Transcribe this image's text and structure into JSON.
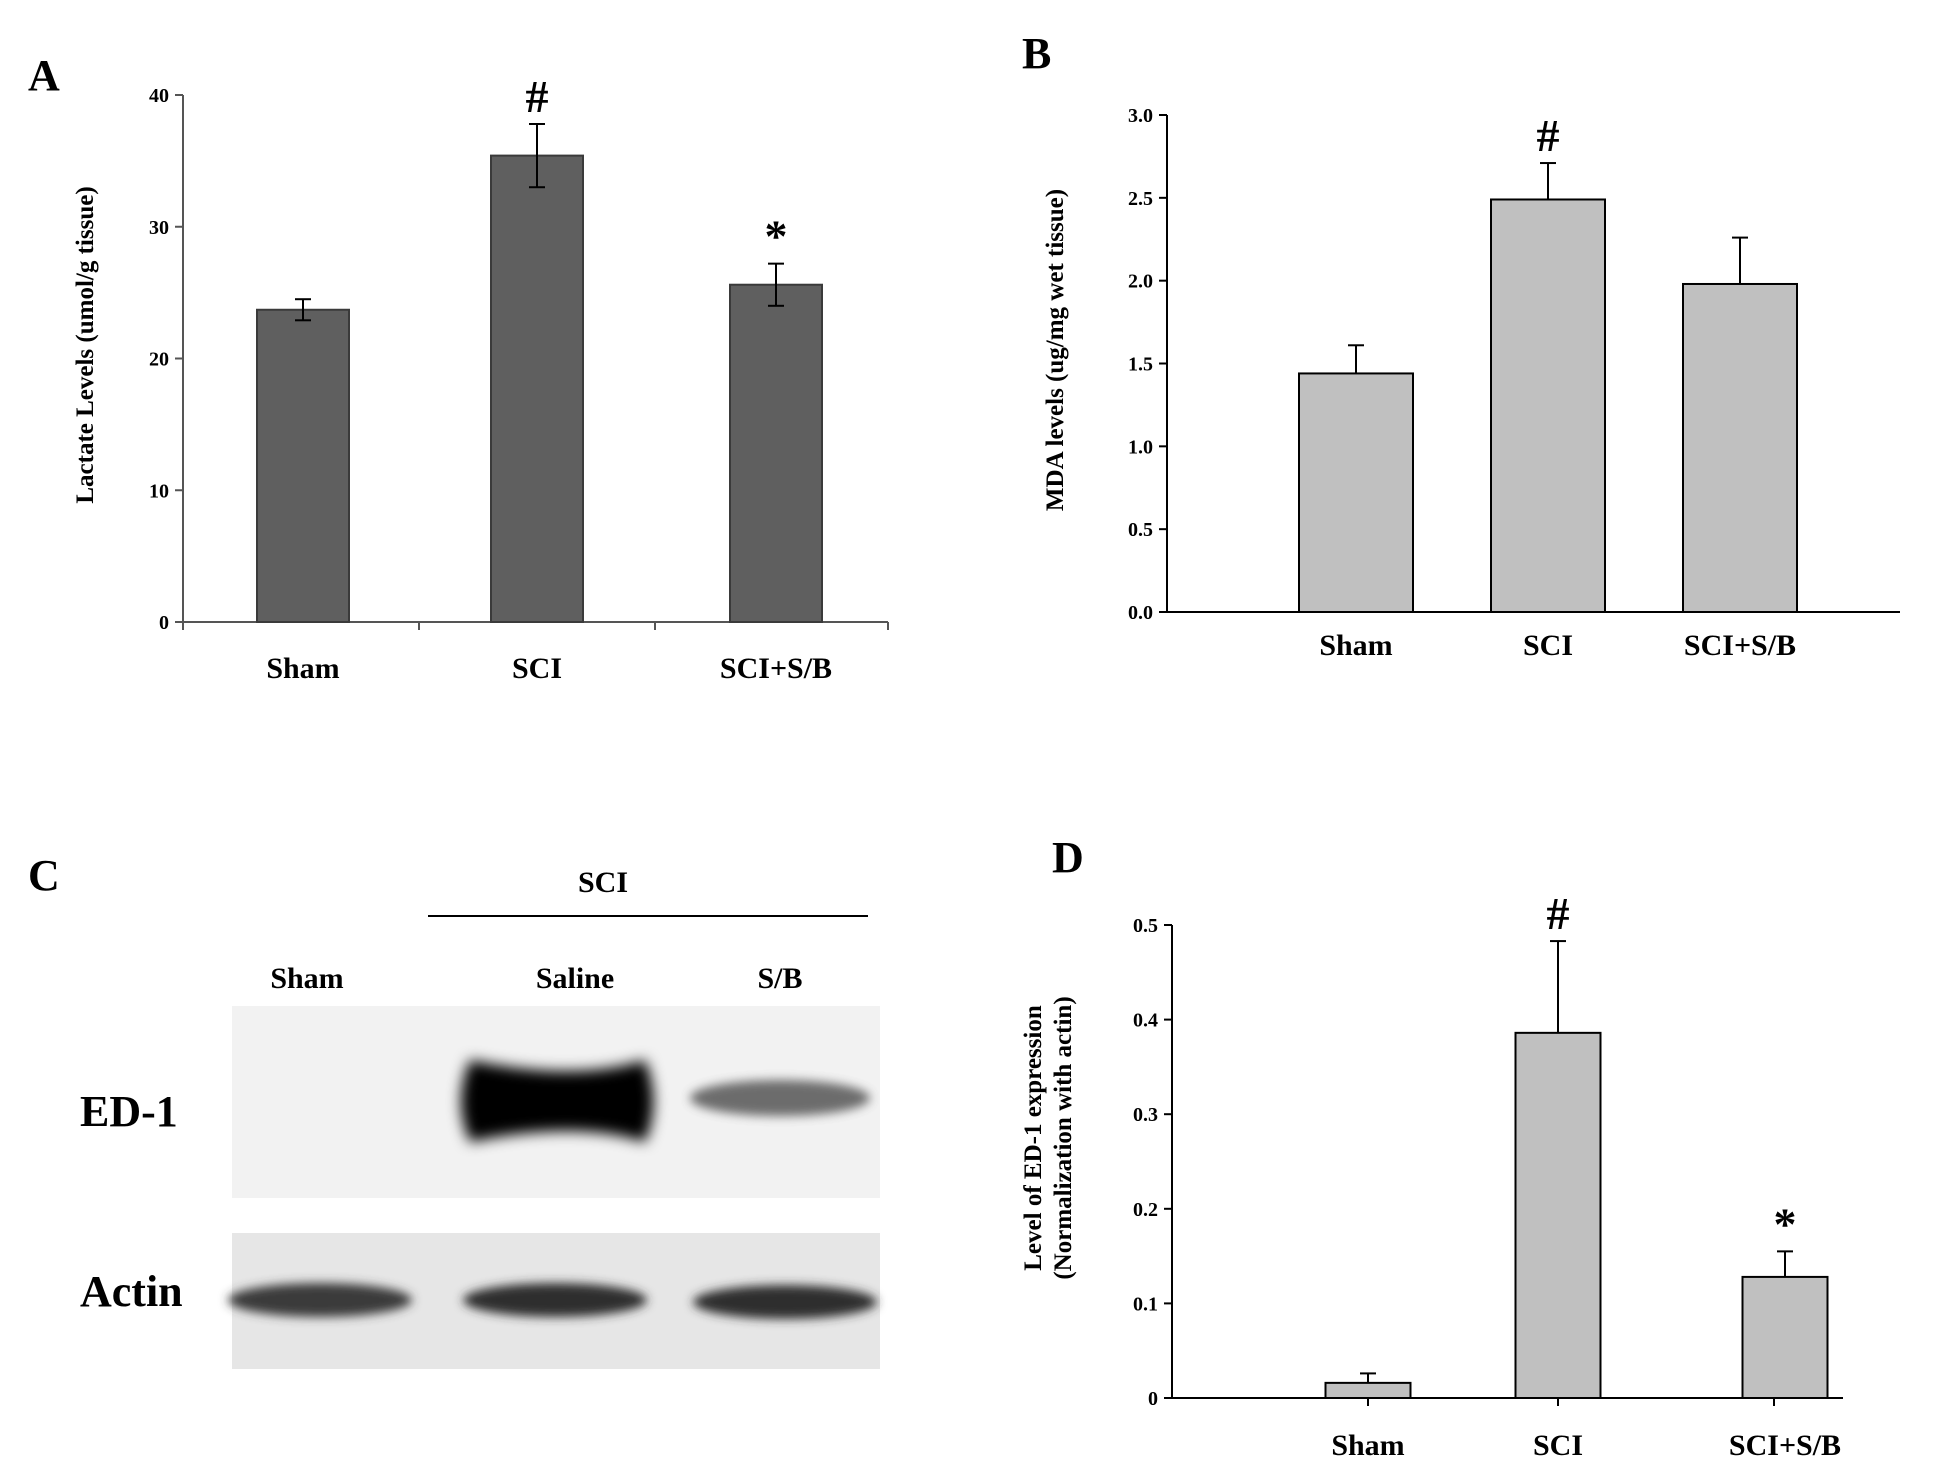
{
  "chart_data": [
    {
      "panel": "A",
      "type": "bar",
      "categories": [
        "Sham",
        "SCI",
        "SCI+S/B"
      ],
      "values": [
        23.7,
        35.4,
        25.6
      ],
      "errors": [
        0.8,
        2.4,
        1.6
      ],
      "annotations": [
        "",
        "#",
        "*"
      ],
      "ylabel": "Lactate Levels (umol/g tissue)",
      "ylim": [
        0,
        40
      ],
      "yticks": [
        0,
        10,
        20,
        30,
        40
      ],
      "ytick_labels": [
        "0",
        "10",
        "20",
        "30",
        "40"
      ],
      "bar_color": "#5f5f5f",
      "grid": false
    },
    {
      "panel": "B",
      "type": "bar",
      "categories": [
        "Sham",
        "SCI",
        "SCI+S/B"
      ],
      "values": [
        1.44,
        2.49,
        1.98
      ],
      "errors": [
        0.17,
        0.22,
        0.28
      ],
      "annotations": [
        "",
        "#",
        ""
      ],
      "ylabel": "MDA levels (ug/mg wet tissue)",
      "ylim": [
        0,
        3.0
      ],
      "yticks": [
        0,
        0.5,
        1.0,
        1.5,
        2.0,
        2.5,
        3.0
      ],
      "ytick_labels": [
        "0.0",
        "0.5",
        "1.0",
        "1.5",
        "2.0",
        "2.5",
        "3.0"
      ],
      "bar_color": "#c0c0c0",
      "grid": false
    },
    {
      "panel": "D",
      "type": "bar",
      "categories": [
        "Sham",
        "SCI",
        "SCI+S/B"
      ],
      "values": [
        0.016,
        0.386,
        0.128
      ],
      "errors": [
        0.01,
        0.097,
        0.027
      ],
      "annotations": [
        "",
        "#",
        "*"
      ],
      "ylabel": "Level of ED-1 expression (Normalization with actin)",
      "ylabel_lines": [
        "Level of ED-1 expression",
        "(Normalization with actin)"
      ],
      "ylim": [
        0,
        0.5
      ],
      "yticks": [
        0,
        0.1,
        0.2,
        0.3,
        0.4,
        0.5
      ],
      "ytick_labels": [
        "0",
        "0.1",
        "0.2",
        "0.3",
        "0.4",
        "0.5"
      ],
      "bar_color": "#c0c0c0",
      "grid": false
    }
  ],
  "blot": {
    "panel": "C",
    "group_label": "SCI",
    "lanes": [
      "Sham",
      "Saline",
      "S/B"
    ],
    "rows": [
      "ED-1",
      "Actin"
    ],
    "band_intensity": {
      "ED-1": [
        0.0,
        1.0,
        0.35
      ],
      "Actin": [
        0.7,
        0.8,
        0.8
      ]
    }
  }
}
